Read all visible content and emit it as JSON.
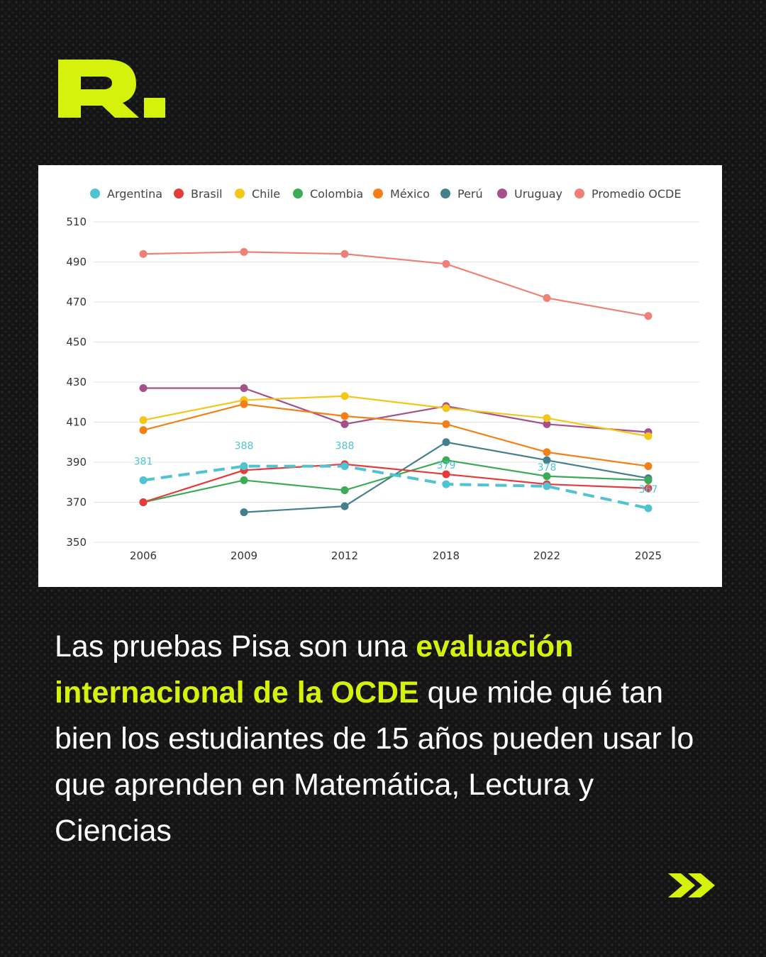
{
  "brand": {
    "logo_text": "R.",
    "accent_color": "#d4f20b"
  },
  "chart_data": {
    "type": "line",
    "title": "",
    "xlabel": "",
    "ylabel": "",
    "categories": [
      "2006",
      "2009",
      "2012",
      "2018",
      "2022",
      "2025"
    ],
    "ylim": [
      350,
      510
    ],
    "yticks": [
      350,
      370,
      390,
      410,
      430,
      450,
      470,
      490,
      510
    ],
    "grid": true,
    "legend_position": "top",
    "series": [
      {
        "name": "Argentina",
        "color": "#4fc3d1",
        "dashed": true,
        "values": [
          381,
          388,
          388,
          379,
          378,
          367
        ],
        "labels": [
          "381",
          "388",
          "388",
          "379",
          "378",
          "367"
        ]
      },
      {
        "name": "Brasil",
        "color": "#e63b3b",
        "values": [
          370,
          386,
          389,
          384,
          379,
          377
        ]
      },
      {
        "name": "Chile",
        "color": "#f5c518",
        "values": [
          411,
          421,
          423,
          417,
          412,
          403
        ]
      },
      {
        "name": "Colombia",
        "color": "#3cab55",
        "values": [
          370,
          381,
          376,
          391,
          383,
          381
        ]
      },
      {
        "name": "México",
        "color": "#f47f17",
        "values": [
          406,
          419,
          413,
          409,
          395,
          388
        ]
      },
      {
        "name": "Perú",
        "color": "#447f8e",
        "values": [
          null,
          365,
          368,
          400,
          391,
          382
        ]
      },
      {
        "name": "Uruguay",
        "color": "#a4508b",
        "values": [
          427,
          427,
          409,
          418,
          409,
          405
        ]
      },
      {
        "name": "Promedio OCDE",
        "color": "#ee8078",
        "values": [
          494,
          495,
          494,
          489,
          472,
          463
        ]
      }
    ]
  },
  "caption": {
    "part1": "Las pruebas Pisa son una ",
    "highlight": "evaluación internacional de la OCDE",
    "part2": " que mide qué tan bien los estudiantes de 15 años pueden usar lo que aprenden en Matemática, Lectura y Ciencias"
  },
  "navigation": {
    "next_icon": "double-chevron-right-icon"
  }
}
